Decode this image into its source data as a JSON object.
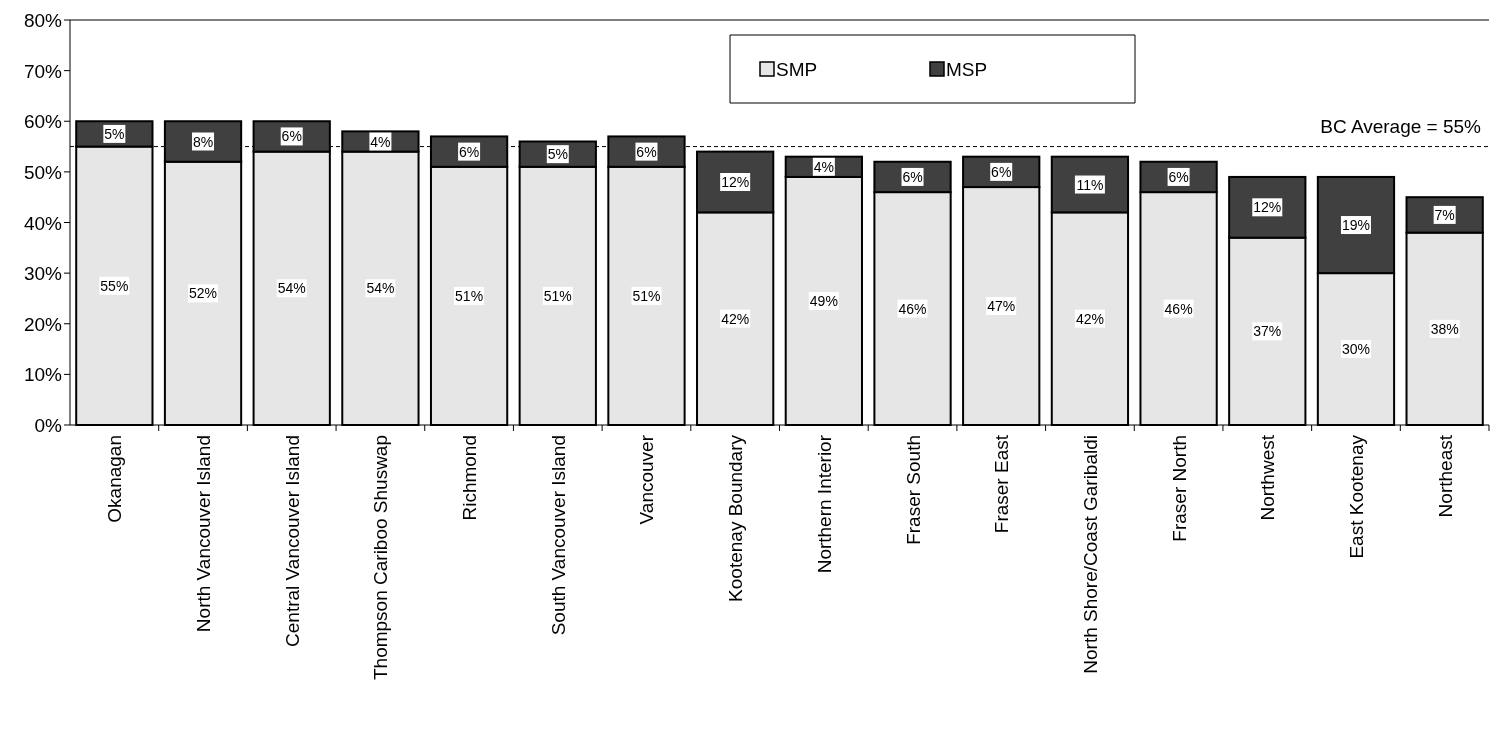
{
  "chart_data": {
    "type": "bar",
    "stacked": true,
    "categories": [
      "Okanagan",
      "North Vancouver Island",
      "Central Vancouver Island",
      "Thompson Cariboo Shuswap",
      "Richmond",
      "South Vancouver Island",
      "Vancouver",
      "Kootenay Boundary",
      "Northern Interior",
      "Fraser South",
      "Fraser East",
      "North Shore/Coast Garibaldi",
      "Fraser North",
      "Northwest",
      "East Kootenay",
      "Northeast"
    ],
    "series": [
      {
        "name": "SMP",
        "color": "#e6e6e6",
        "values": [
          55,
          52,
          54,
          54,
          51,
          51,
          51,
          42,
          49,
          46,
          47,
          42,
          46,
          37,
          30,
          38
        ],
        "value_labels": [
          "55%",
          "52%",
          "54%",
          "54%",
          "51%",
          "51%",
          "51%",
          "42%",
          "49%",
          "46%",
          "47%",
          "42%",
          "46%",
          "37%",
          "30%",
          "38%"
        ]
      },
      {
        "name": "MSP",
        "color": "#404040",
        "values": [
          5,
          8,
          6,
          4,
          6,
          5,
          6,
          12,
          4,
          6,
          6,
          11,
          6,
          12,
          19,
          7
        ],
        "value_labels": [
          "5%",
          "8%",
          "6%",
          "4%",
          "6%",
          "5%",
          "6%",
          "12%",
          "4%",
          "6%",
          "6%",
          "11%",
          "6%",
          "12%",
          "19%",
          "7%"
        ]
      }
    ],
    "ylim": [
      0,
      80
    ],
    "yticks": [
      {
        "value": 0,
        "label": "0%"
      },
      {
        "value": 10,
        "label": "10%"
      },
      {
        "value": 20,
        "label": "20%"
      },
      {
        "value": 30,
        "label": "30%"
      },
      {
        "value": 40,
        "label": "40%"
      },
      {
        "value": 50,
        "label": "50%"
      },
      {
        "value": 60,
        "label": "60%"
      },
      {
        "value": 70,
        "label": "70%"
      },
      {
        "value": 80,
        "label": "80%"
      }
    ],
    "legend": "top",
    "grid": false,
    "ref_lines": [
      {
        "axis": "y",
        "value": 55,
        "label": "BC Average = 55%",
        "line_style": "dashed",
        "color": "#000000"
      }
    ]
  }
}
